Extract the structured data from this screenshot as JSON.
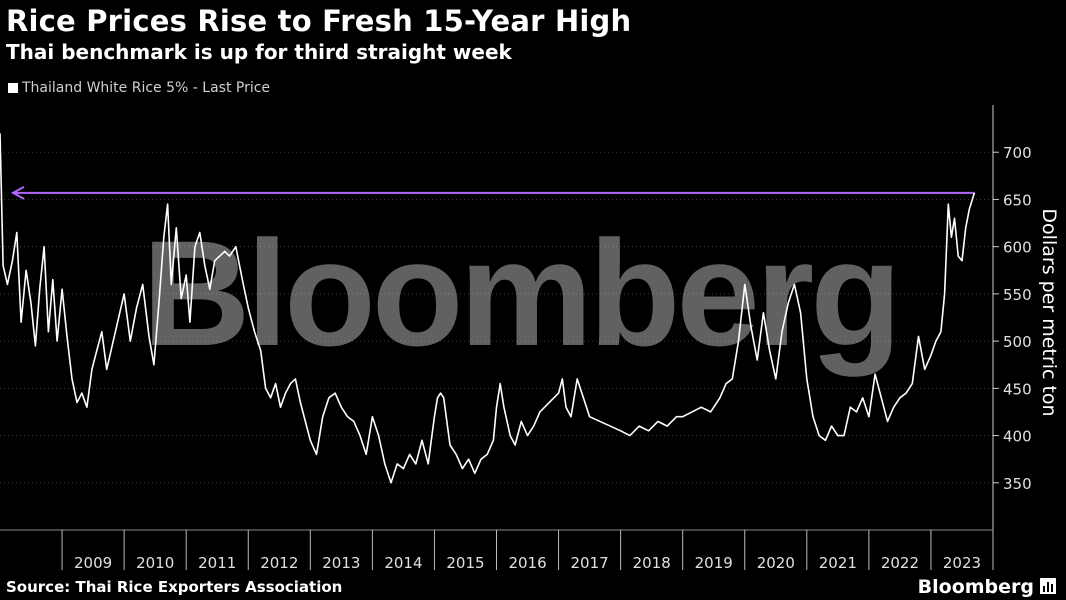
{
  "title": "Rice Prices Rise to Fresh 15-Year High",
  "subtitle": "Thai benchmark is up for third straight week",
  "legend": {
    "label": "Thailand White Rice 5% - Last Price",
    "color": "#ffffff"
  },
  "source": "Source: Thai Rice Exporters Association",
  "brand": "Bloomberg",
  "watermark": "Bloomberg",
  "colors": {
    "background": "#000000",
    "line": "#ffffff",
    "arrow": "#b066ff",
    "grid": "#3a3a3a"
  },
  "chart_data": {
    "type": "line",
    "title": "Rice Prices Rise to Fresh 15-Year High",
    "ylabel": "Dollars per metric ton",
    "ylim": [
      300,
      750
    ],
    "yticks": [
      350,
      400,
      450,
      500,
      550,
      600,
      650,
      700
    ],
    "xlim": [
      2008.0,
      2024.0
    ],
    "xticks": [
      "2009",
      "2010",
      "2011",
      "2012",
      "2013",
      "2014",
      "2015",
      "2016",
      "2017",
      "2018",
      "2019",
      "2020",
      "2021",
      "2022",
      "2023"
    ],
    "reference_arrow": {
      "value": 657
    },
    "series": [
      {
        "name": "Thailand White Rice 5% - Last Price",
        "points": [
          [
            2008.0,
            720
          ],
          [
            2008.05,
            580
          ],
          [
            2008.12,
            560
          ],
          [
            2008.2,
            585
          ],
          [
            2008.27,
            615
          ],
          [
            2008.34,
            520
          ],
          [
            2008.42,
            575
          ],
          [
            2008.5,
            540
          ],
          [
            2008.57,
            495
          ],
          [
            2008.64,
            555
          ],
          [
            2008.71,
            600
          ],
          [
            2008.78,
            510
          ],
          [
            2008.85,
            565
          ],
          [
            2008.92,
            500
          ],
          [
            2009.0,
            555
          ],
          [
            2009.08,
            505
          ],
          [
            2009.16,
            460
          ],
          [
            2009.24,
            435
          ],
          [
            2009.32,
            445
          ],
          [
            2009.4,
            430
          ],
          [
            2009.48,
            470
          ],
          [
            2009.56,
            490
          ],
          [
            2009.64,
            510
          ],
          [
            2009.72,
            470
          ],
          [
            2010.0,
            550
          ],
          [
            2010.1,
            500
          ],
          [
            2010.2,
            535
          ],
          [
            2010.3,
            560
          ],
          [
            2010.4,
            505
          ],
          [
            2010.48,
            475
          ],
          [
            2010.56,
            540
          ],
          [
            2010.64,
            610
          ],
          [
            2010.7,
            645
          ],
          [
            2010.76,
            560
          ],
          [
            2010.84,
            620
          ],
          [
            2010.92,
            545
          ],
          [
            2011.0,
            570
          ],
          [
            2011.06,
            520
          ],
          [
            2011.14,
            600
          ],
          [
            2011.22,
            615
          ],
          [
            2011.3,
            580
          ],
          [
            2011.38,
            555
          ],
          [
            2011.46,
            585
          ],
          [
            2011.54,
            590
          ],
          [
            2011.62,
            595
          ],
          [
            2011.7,
            590
          ],
          [
            2011.8,
            600
          ],
          [
            2011.92,
            560
          ],
          [
            2012.0,
            535
          ],
          [
            2012.1,
            510
          ],
          [
            2012.2,
            490
          ],
          [
            2012.28,
            450
          ],
          [
            2012.36,
            440
          ],
          [
            2012.44,
            455
          ],
          [
            2012.52,
            430
          ],
          [
            2012.6,
            445
          ],
          [
            2012.68,
            455
          ],
          [
            2012.76,
            460
          ],
          [
            2012.84,
            435
          ],
          [
            2013.0,
            395
          ],
          [
            2013.1,
            380
          ],
          [
            2013.2,
            420
          ],
          [
            2013.3,
            440
          ],
          [
            2013.4,
            445
          ],
          [
            2013.5,
            430
          ],
          [
            2013.6,
            420
          ],
          [
            2013.7,
            415
          ],
          [
            2013.8,
            400
          ],
          [
            2013.9,
            380
          ],
          [
            2014.0,
            420
          ],
          [
            2014.1,
            400
          ],
          [
            2014.2,
            370
          ],
          [
            2014.3,
            350
          ],
          [
            2014.4,
            370
          ],
          [
            2014.5,
            365
          ],
          [
            2014.6,
            380
          ],
          [
            2014.7,
            370
          ],
          [
            2014.8,
            395
          ],
          [
            2014.9,
            370
          ],
          [
            2015.0,
            420
          ],
          [
            2015.05,
            440
          ],
          [
            2015.1,
            445
          ],
          [
            2015.15,
            440
          ],
          [
            2015.25,
            390
          ],
          [
            2015.35,
            380
          ],
          [
            2015.45,
            365
          ],
          [
            2015.55,
            375
          ],
          [
            2015.65,
            360
          ],
          [
            2015.75,
            375
          ],
          [
            2015.85,
            380
          ],
          [
            2015.95,
            395
          ],
          [
            2016.0,
            430
          ],
          [
            2016.06,
            455
          ],
          [
            2016.12,
            430
          ],
          [
            2016.22,
            400
          ],
          [
            2016.3,
            390
          ],
          [
            2016.4,
            415
          ],
          [
            2016.5,
            400
          ],
          [
            2016.6,
            410
          ],
          [
            2016.7,
            425
          ],
          [
            2017.0,
            445
          ],
          [
            2017.06,
            460
          ],
          [
            2017.12,
            430
          ],
          [
            2017.2,
            420
          ],
          [
            2017.3,
            460
          ],
          [
            2017.4,
            440
          ],
          [
            2017.5,
            420
          ],
          [
            2018.0,
            405
          ],
          [
            2018.15,
            400
          ],
          [
            2018.3,
            410
          ],
          [
            2018.45,
            405
          ],
          [
            2018.6,
            415
          ],
          [
            2018.75,
            410
          ],
          [
            2018.9,
            420
          ],
          [
            2019.0,
            420
          ],
          [
            2019.15,
            425
          ],
          [
            2019.3,
            430
          ],
          [
            2019.45,
            425
          ],
          [
            2019.6,
            440
          ],
          [
            2019.7,
            455
          ],
          [
            2019.8,
            460
          ],
          [
            2019.9,
            500
          ],
          [
            2020.0,
            560
          ],
          [
            2020.1,
            515
          ],
          [
            2020.2,
            480
          ],
          [
            2020.3,
            530
          ],
          [
            2020.4,
            490
          ],
          [
            2020.5,
            460
          ],
          [
            2020.6,
            510
          ],
          [
            2020.7,
            540
          ],
          [
            2020.8,
            560
          ],
          [
            2020.9,
            530
          ],
          [
            2021.0,
            460
          ],
          [
            2021.1,
            420
          ],
          [
            2021.2,
            400
          ],
          [
            2021.3,
            395
          ],
          [
            2021.4,
            410
          ],
          [
            2021.5,
            400
          ],
          [
            2021.6,
            400
          ],
          [
            2021.7,
            430
          ],
          [
            2021.8,
            425
          ],
          [
            2021.9,
            440
          ],
          [
            2022.0,
            420
          ],
          [
            2022.1,
            465
          ],
          [
            2022.2,
            440
          ],
          [
            2022.3,
            415
          ],
          [
            2022.4,
            430
          ],
          [
            2022.5,
            440
          ],
          [
            2022.6,
            445
          ],
          [
            2022.7,
            455
          ],
          [
            2022.8,
            505
          ],
          [
            2022.9,
            470
          ],
          [
            2023.0,
            485
          ],
          [
            2023.08,
            500
          ],
          [
            2023.16,
            510
          ],
          [
            2023.22,
            550
          ],
          [
            2023.28,
            645
          ],
          [
            2023.33,
            610
          ],
          [
            2023.38,
            630
          ],
          [
            2023.44,
            590
          ],
          [
            2023.5,
            585
          ],
          [
            2023.56,
            620
          ],
          [
            2023.62,
            640
          ],
          [
            2023.7,
            657
          ]
        ]
      }
    ]
  }
}
